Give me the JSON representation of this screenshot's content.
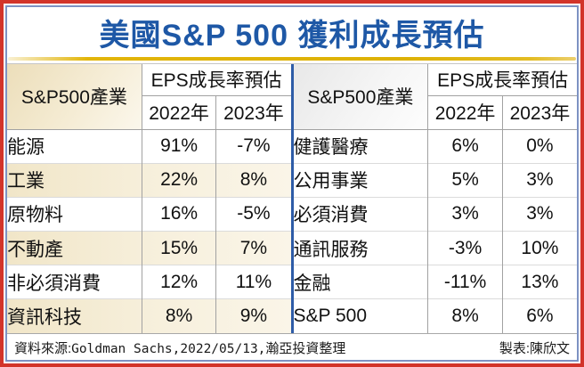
{
  "title": "美國S&P 500 獲利成長預估",
  "tables": [
    {
      "industry_header": "S&P500產業",
      "eps_header": "EPS成長率預估",
      "year_2022": "2022年",
      "year_2023": "2023年",
      "rows": [
        {
          "label": "能源",
          "y2022": "91%",
          "y2023": "-7%"
        },
        {
          "label": "工業",
          "y2022": "22%",
          "y2023": "8%"
        },
        {
          "label": "原物料",
          "y2022": "16%",
          "y2023": "-5%"
        },
        {
          "label": "不動產",
          "y2022": "15%",
          "y2023": "7%"
        },
        {
          "label": "非必須消費",
          "y2022": "12%",
          "y2023": "11%"
        },
        {
          "label": "資訊科技",
          "y2022": "8%",
          "y2023": "9%"
        }
      ]
    },
    {
      "industry_header": "S&P500產業",
      "eps_header": "EPS成長率預估",
      "year_2022": "2022年",
      "year_2023": "2023年",
      "rows": [
        {
          "label": "健護醫療",
          "y2022": "6%",
          "y2023": "0%"
        },
        {
          "label": "公用事業",
          "y2022": "5%",
          "y2023": "3%"
        },
        {
          "label": "必須消費",
          "y2022": "3%",
          "y2023": "3%"
        },
        {
          "label": "通訊服務",
          "y2022": "-3%",
          "y2023": "10%"
        },
        {
          "label": "金融",
          "y2022": "-11%",
          "y2023": "13%"
        },
        {
          "label": "S&P 500",
          "y2022": "8%",
          "y2023": "6%"
        }
      ]
    }
  ],
  "footer": {
    "source_prefix": "資料來源:",
    "source_detail": "Goldman Sachs,2022/05/13,",
    "source_suffix": "瀚亞投資整理",
    "credit": "製表:陳欣文"
  },
  "colors": {
    "frame_red": "#d2342a",
    "frame_blue": "#7d92c3",
    "title_blue": "#1e58a6",
    "gold_rule": "#ddb104",
    "table_divider_blue": "#2e5ca7",
    "cream_row": "#f1e6c8",
    "gray_header": "#e8e8e8"
  },
  "chart_data": {
    "type": "table",
    "title": "美國S&P 500 獲利成長預估",
    "column_groups": [
      "S&P500產業",
      "EPS成長率預估"
    ],
    "columns": [
      "S&P500產業",
      "2022年",
      "2023年"
    ],
    "units": "percent (EPS growth estimate)",
    "rows": [
      [
        "能源",
        91,
        -7
      ],
      [
        "工業",
        22,
        8
      ],
      [
        "原物料",
        16,
        -5
      ],
      [
        "不動產",
        15,
        7
      ],
      [
        "非必須消費",
        12,
        11
      ],
      [
        "資訊科技",
        8,
        9
      ],
      [
        "健護醫療",
        6,
        0
      ],
      [
        "公用事業",
        5,
        3
      ],
      [
        "必須消費",
        3,
        3
      ],
      [
        "通訊服務",
        -3,
        10
      ],
      [
        "金融",
        -11,
        13
      ],
      [
        "S&P 500",
        8,
        6
      ]
    ],
    "source": "Goldman Sachs, 2022/05/13, 瀚亞投資整理",
    "credit": "陳欣文"
  }
}
